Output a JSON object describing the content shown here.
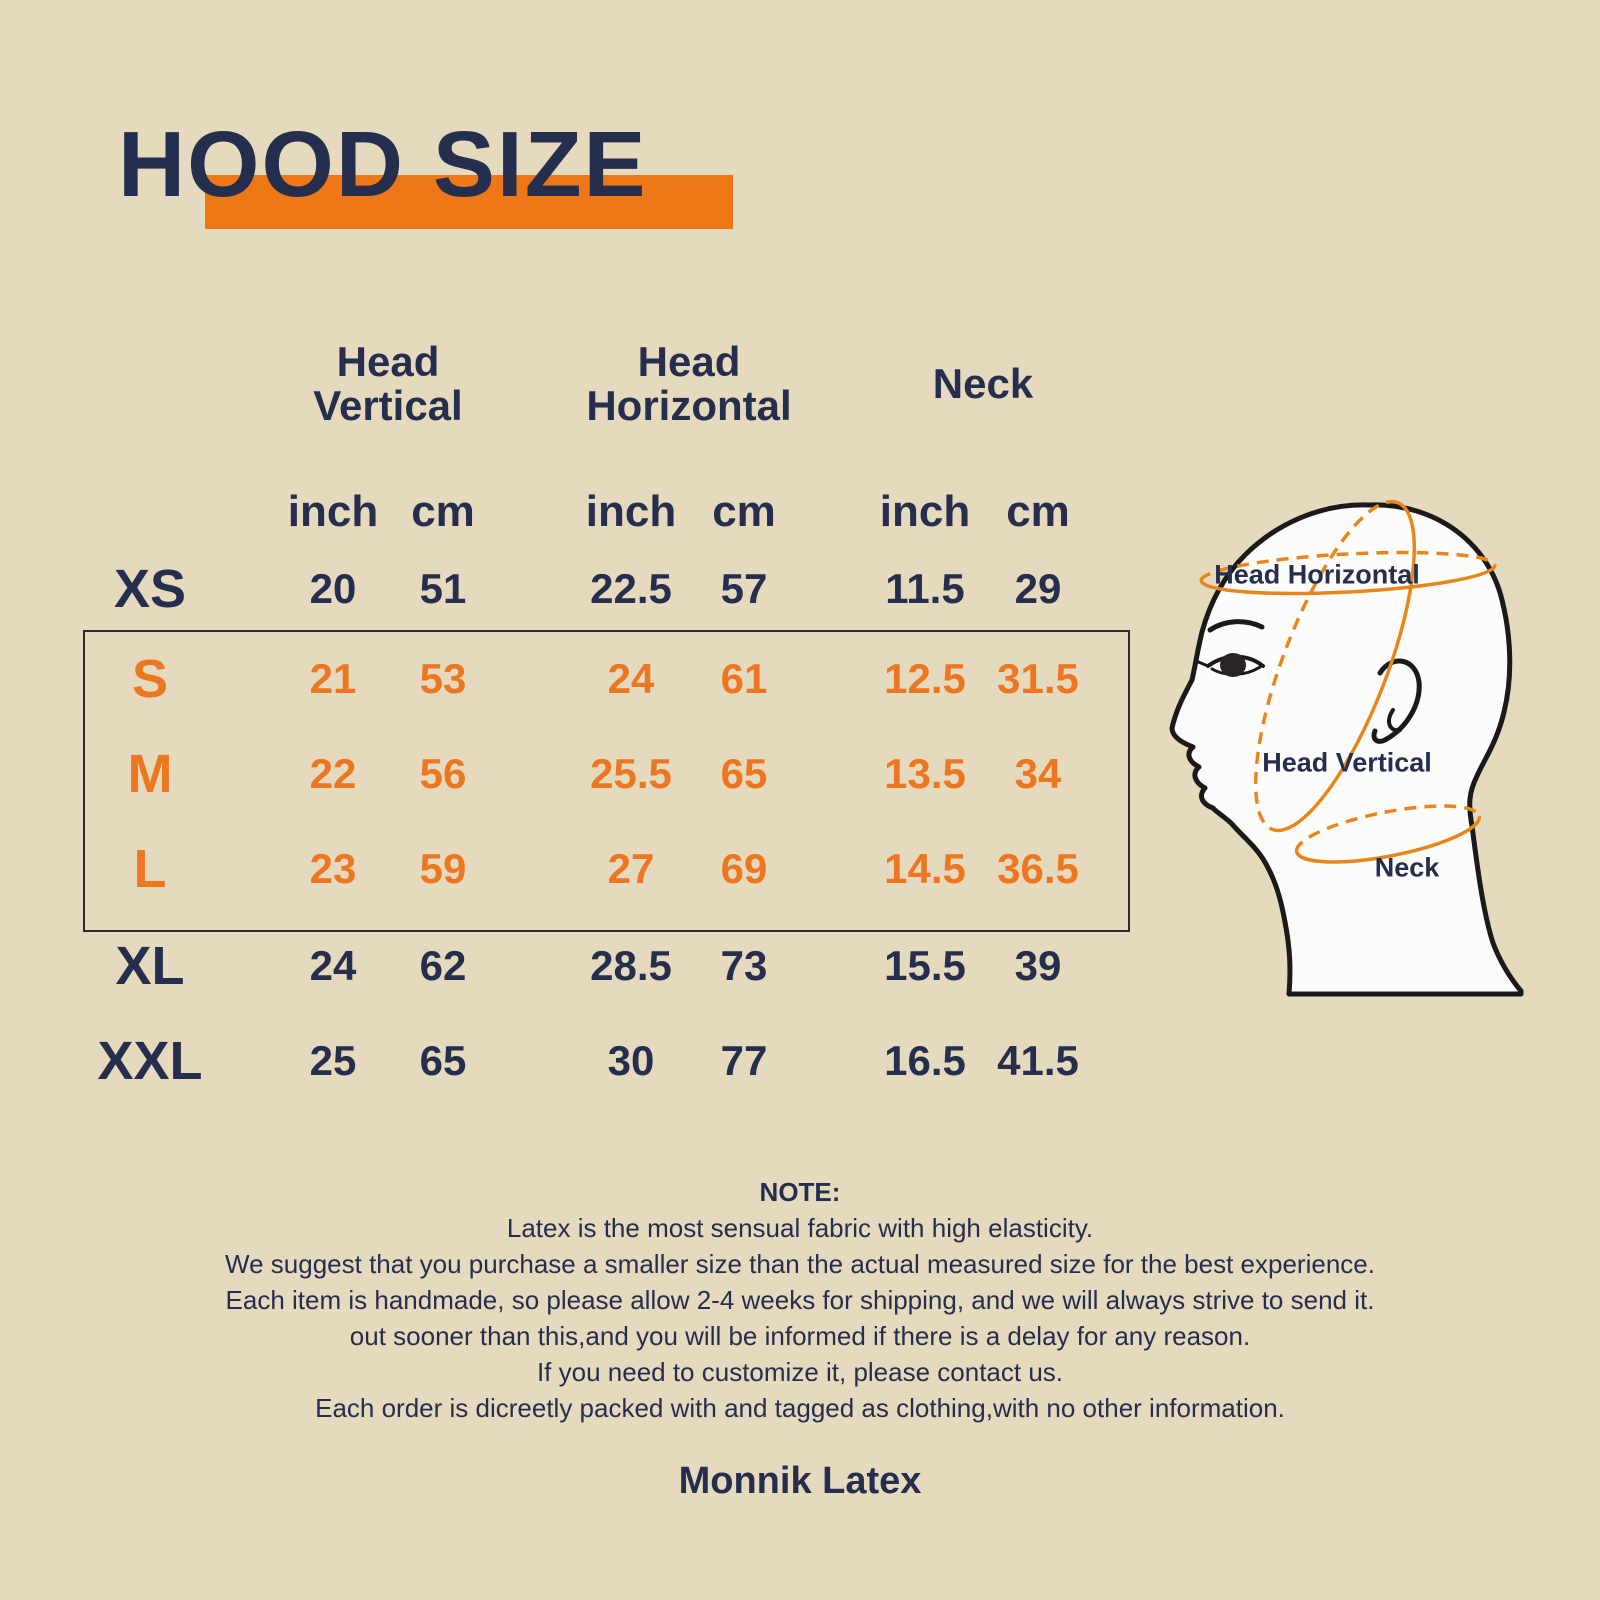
{
  "page": {
    "title": "HOOD SIZE",
    "brand": "Monnik Latex"
  },
  "colors": {
    "background": "#e5d9be",
    "navy_text": "#262e4e",
    "orange_accent": "#ee7818",
    "orange_highlight_text": "#ed7720",
    "box_border": "#2b2b2b",
    "head_fill": "#fcfcfa",
    "head_outline": "#1a1a1a",
    "measure_line_orange": "#e8861c"
  },
  "table": {
    "groups": [
      {
        "label_line1": "Head",
        "label_line2": "Vertical"
      },
      {
        "label_line1": "Head",
        "label_line2": "Horizontal"
      },
      {
        "label_line1": "Neck",
        "label_line2": ""
      }
    ],
    "units": [
      "inch",
      "cm"
    ],
    "rows": [
      {
        "size": "XS",
        "highlight": false,
        "values": [
          "20",
          "51",
          "22.5",
          "57",
          "11.5",
          "29"
        ]
      },
      {
        "size": "S",
        "highlight": true,
        "values": [
          "21",
          "53",
          "24",
          "61",
          "12.5",
          "31.5"
        ]
      },
      {
        "size": "M",
        "highlight": true,
        "values": [
          "22",
          "56",
          "25.5",
          "65",
          "13.5",
          "34"
        ]
      },
      {
        "size": "L",
        "highlight": true,
        "values": [
          "23",
          "59",
          "27",
          "69",
          "14.5",
          "36.5"
        ]
      },
      {
        "size": "XL",
        "highlight": false,
        "values": [
          "24",
          "62",
          "28.5",
          "73",
          "15.5",
          "39"
        ]
      },
      {
        "size": "XXL",
        "highlight": false,
        "values": [
          "25",
          "65",
          "30",
          "77",
          "16.5",
          "41.5"
        ]
      }
    ]
  },
  "diagram": {
    "labels": {
      "horizontal": "Head Horizontal",
      "vertical": "Head Vertical",
      "neck": "Neck"
    }
  },
  "note": {
    "heading": "NOTE:",
    "lines": [
      "Latex is the most sensual fabric with high elasticity.",
      "We suggest that you purchase a smaller size than the actual measured size for the best experience.",
      "Each item is handmade, so please allow 2-4 weeks for shipping, and we will always strive to send it.",
      "out sooner than this,and you will be informed if there is a delay for any reason.",
      "If you need to customize it, please contact us.",
      "Each order is dicreetly packed with and tagged as clothing,with no other information."
    ]
  },
  "chart_data": {
    "type": "table",
    "title": "HOOD SIZE",
    "column_groups": [
      "Head Vertical",
      "Head Horizontal",
      "Neck"
    ],
    "columns": [
      "Head Vertical inch",
      "Head Vertical cm",
      "Head Horizontal inch",
      "Head Horizontal cm",
      "Neck inch",
      "Neck cm"
    ],
    "row_labels": [
      "XS",
      "S",
      "M",
      "L",
      "XL",
      "XXL"
    ],
    "values": [
      [
        20,
        51,
        22.5,
        57,
        11.5,
        29
      ],
      [
        21,
        53,
        24,
        61,
        12.5,
        31.5
      ],
      [
        22,
        56,
        25.5,
        65,
        13.5,
        34
      ],
      [
        23,
        59,
        27,
        69,
        14.5,
        36.5
      ],
      [
        24,
        62,
        28.5,
        73,
        15.5,
        39
      ],
      [
        25,
        65,
        30,
        77,
        16.5,
        41.5
      ]
    ],
    "highlighted_rows": [
      "S",
      "M",
      "L"
    ]
  }
}
